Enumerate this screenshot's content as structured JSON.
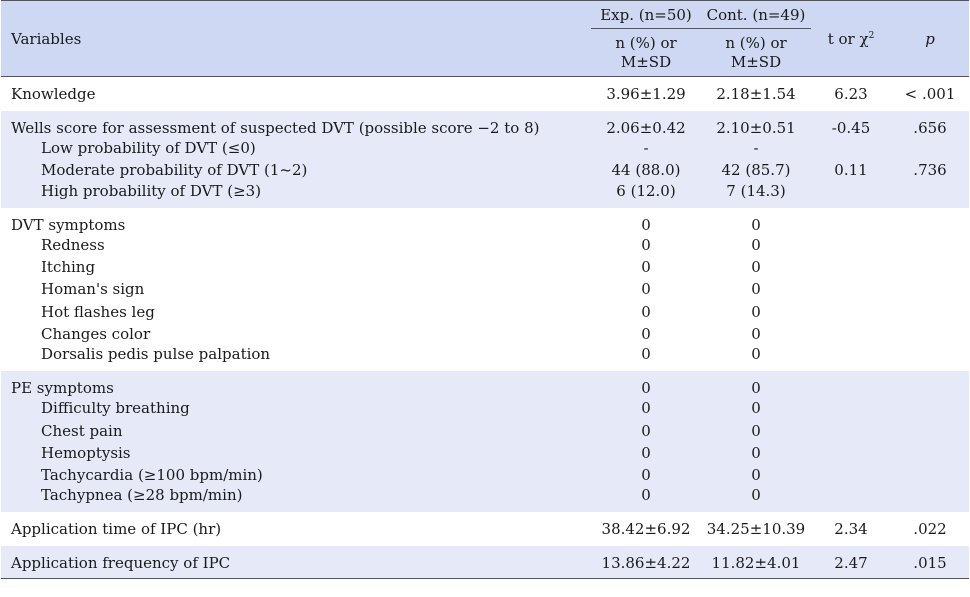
{
  "header": {
    "variables": "Variables",
    "exp_group": "Exp. (n=50)",
    "cont_group": "Cont. (n=49)",
    "exp_sub_line1": "n (%) or",
    "exp_sub_line2": "M±SD",
    "cont_sub_line1": "n (%) or",
    "cont_sub_line2": "M±SD",
    "t_label": "t or χ",
    "t_sup": "2",
    "p_label": "p"
  },
  "groups": [
    {
      "band": "a",
      "rows": [
        {
          "label": "Knowledge",
          "exp": "3.96±1.29",
          "cont": "2.18±1.54",
          "t": "6.23",
          "p": "< .001",
          "sub": false
        }
      ]
    },
    {
      "band": "b",
      "rows": [
        {
          "label": "Wells score for assessment of suspected DVT (possible score −2 to 8)",
          "exp": "2.06±0.42",
          "cont": "2.10±0.51",
          "t": "-0.45",
          "p": ".656",
          "sub": false
        },
        {
          "label": "Low probability of DVT (≤0)",
          "exp": "-",
          "cont": "-",
          "t": "",
          "p": "",
          "sub": true
        },
        {
          "label": "Moderate probability of DVT (1~2)",
          "exp": "44 (88.0)",
          "cont": "42 (85.7)",
          "t": "0.11",
          "p": ".736",
          "sub": true
        },
        {
          "label": "High probability of DVT (≥3)",
          "exp": "6 (12.0)",
          "cont": "7 (14.3)",
          "t": "",
          "p": "",
          "sub": true
        }
      ]
    },
    {
      "band": "a",
      "rows": [
        {
          "label": "DVT symptoms",
          "exp": "0",
          "cont": "0",
          "t": "",
          "p": "",
          "sub": false
        },
        {
          "label": "Redness",
          "exp": "0",
          "cont": "0",
          "t": "",
          "p": "",
          "sub": true
        },
        {
          "label": "Itching",
          "exp": "0",
          "cont": "0",
          "t": "",
          "p": "",
          "sub": true
        },
        {
          "label": "Homan's sign",
          "exp": "0",
          "cont": "0",
          "t": "",
          "p": "",
          "sub": true
        },
        {
          "label": "Hot flashes leg",
          "exp": "0",
          "cont": "0",
          "t": "",
          "p": "",
          "sub": true
        },
        {
          "label": "Changes color",
          "exp": "0",
          "cont": "0",
          "t": "",
          "p": "",
          "sub": true
        },
        {
          "label": "Dorsalis pedis pulse palpation",
          "exp": "0",
          "cont": "0",
          "t": "",
          "p": "",
          "sub": true
        }
      ]
    },
    {
      "band": "b",
      "rows": [
        {
          "label": "PE symptoms",
          "exp": "0",
          "cont": "0",
          "t": "",
          "p": "",
          "sub": false
        },
        {
          "label": "Difficulty breathing",
          "exp": "0",
          "cont": "0",
          "t": "",
          "p": "",
          "sub": true
        },
        {
          "label": "Chest pain",
          "exp": "0",
          "cont": "0",
          "t": "",
          "p": "",
          "sub": true
        },
        {
          "label": "Hemoptysis",
          "exp": "0",
          "cont": "0",
          "t": "",
          "p": "",
          "sub": true
        },
        {
          "label": "Tachycardia (≥100 bpm/min)",
          "exp": "0",
          "cont": "0",
          "t": "",
          "p": "",
          "sub": true
        },
        {
          "label": "Tachypnea (≥28 bpm/min)",
          "exp": "0",
          "cont": "0",
          "t": "",
          "p": "",
          "sub": true
        }
      ]
    },
    {
      "band": "a",
      "rows": [
        {
          "label": "Application time of IPC (hr)",
          "exp": "38.42±6.92",
          "cont": "34.25±10.39",
          "t": "2.34",
          "p": ".022",
          "sub": false
        }
      ]
    },
    {
      "band": "b",
      "rows": [
        {
          "label": "Application frequency of IPC",
          "exp": "13.86±4.22",
          "cont": "11.82±4.01",
          "t": "2.47",
          "p": ".015",
          "sub": false
        }
      ]
    }
  ]
}
